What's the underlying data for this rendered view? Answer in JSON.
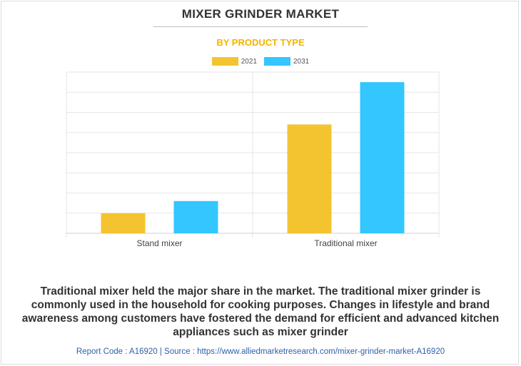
{
  "header": {
    "title": "MIXER GRINDER MARKET",
    "subtitle": "BY PRODUCT TYPE"
  },
  "colors": {
    "series_2021": "#f4c430",
    "series_2031": "#33c6ff",
    "subtitle": "#f4b400",
    "grid": "#e6e6e6",
    "axis": "#cfcfcf",
    "footer_text": "#2f5fa8"
  },
  "chart_data": {
    "type": "bar",
    "categories": [
      "Stand mixer",
      "Traditional mixer"
    ],
    "series": [
      {
        "name": "2021",
        "values": [
          1.0,
          5.4
        ]
      },
      {
        "name": "2031",
        "values": [
          1.6,
          7.5
        ]
      }
    ],
    "title": "MIXER GRINDER MARKET",
    "subtitle": "BY PRODUCT TYPE",
    "xlabel": "",
    "ylabel": "",
    "ylim": [
      0,
      8
    ],
    "y_tick_labels_visible": false,
    "grid": true,
    "legend_position": "top-center"
  },
  "caption": "Traditional mixer held the major share in the market. The traditional mixer grinder is commonly used in the household for cooking purposes. Changes in lifestyle and brand awareness among customers have fostered the demand for efficient and advanced kitchen appliances such as mixer grinder",
  "footer": "Report Code : A16920  |  Source : https://www.alliedmarketresearch.com/mixer-grinder-market-A16920"
}
